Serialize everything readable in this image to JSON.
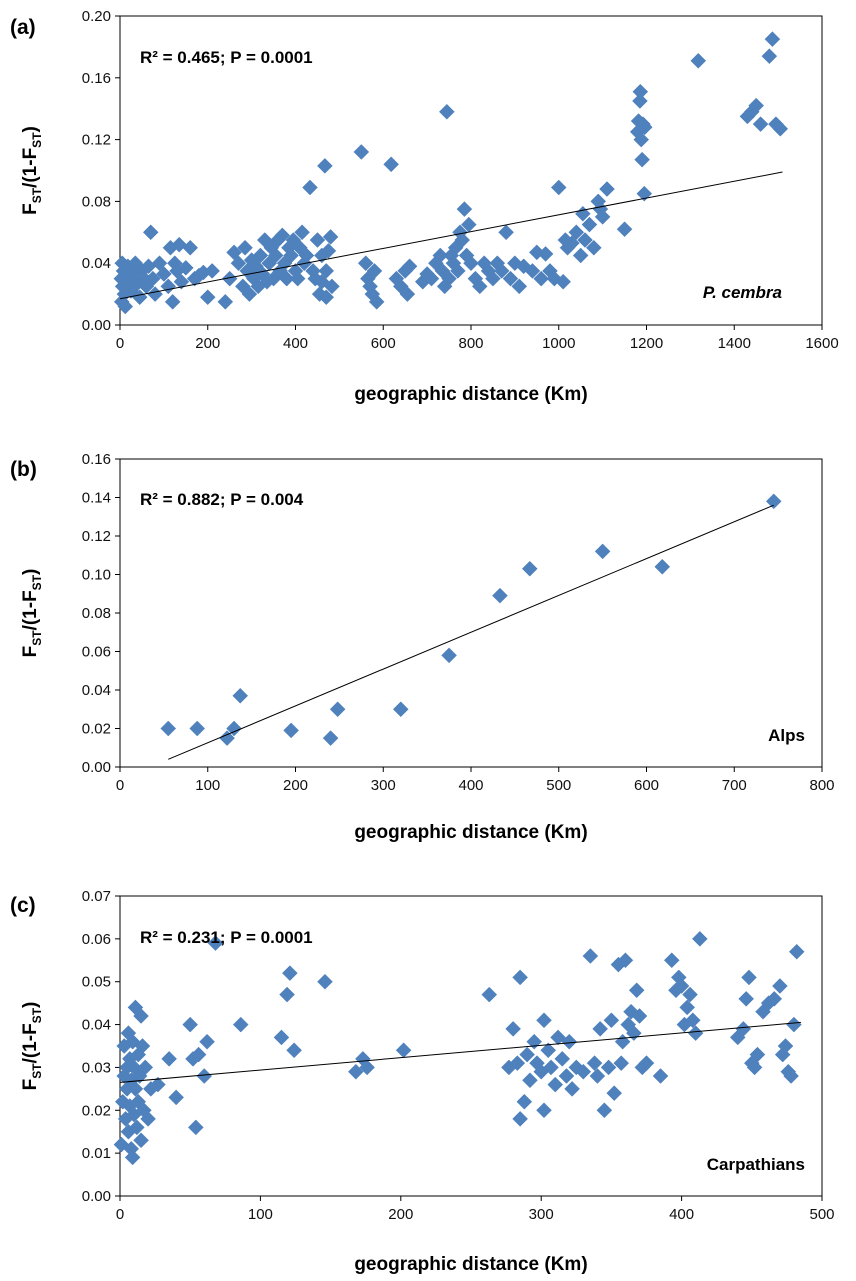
{
  "chart_data": [
    {
      "type": "scatter",
      "panel_label": "(a)",
      "stat_text": "R² = 0.465; P = 0.0001",
      "region_label": "P. cembra",
      "region_italic": true,
      "xlabel": "geographic distance (Km)",
      "ylabel_main": "F",
      "ylabel_sub": "ST",
      "ylabel_mid": "/(1-F",
      "ylabel_end": ")",
      "xlim": [
        0,
        1600
      ],
      "ylim": [
        0,
        0.2
      ],
      "xticks": [
        "0",
        "200",
        "400",
        "600",
        "800",
        "1000",
        "1200",
        "1400",
        "1600"
      ],
      "yticks": [
        "0.00",
        "0.04",
        "0.08",
        "0.12",
        "0.16",
        "0.20"
      ],
      "point_color": "#4f81bd",
      "trendline": {
        "x": [
          0,
          1510
        ],
        "y": [
          0.017,
          0.099
        ]
      },
      "points": [
        [
          5,
          0.04
        ],
        [
          8,
          0.035
        ],
        [
          3,
          0.03
        ],
        [
          6,
          0.025
        ],
        [
          10,
          0.02
        ],
        [
          4,
          0.015
        ],
        [
          12,
          0.012
        ],
        [
          15,
          0.03
        ],
        [
          18,
          0.038
        ],
        [
          20,
          0.028
        ],
        [
          25,
          0.022
        ],
        [
          30,
          0.033
        ],
        [
          35,
          0.04
        ],
        [
          40,
          0.027
        ],
        [
          45,
          0.018
        ],
        [
          50,
          0.035
        ],
        [
          55,
          0.03
        ],
        [
          60,
          0.025
        ],
        [
          70,
          0.06
        ],
        [
          65,
          0.038
        ],
        [
          75,
          0.03
        ],
        [
          80,
          0.02
        ],
        [
          90,
          0.04
        ],
        [
          100,
          0.033
        ],
        [
          110,
          0.025
        ],
        [
          115,
          0.05
        ],
        [
          120,
          0.015
        ],
        [
          125,
          0.04
        ],
        [
          130,
          0.035
        ],
        [
          135,
          0.052
        ],
        [
          140,
          0.028
        ],
        [
          150,
          0.037
        ],
        [
          160,
          0.05
        ],
        [
          170,
          0.03
        ],
        [
          180,
          0.032
        ],
        [
          190,
          0.034
        ],
        [
          200,
          0.018
        ],
        [
          210,
          0.035
        ],
        [
          240,
          0.015
        ],
        [
          250,
          0.03
        ],
        [
          260,
          0.047
        ],
        [
          270,
          0.04
        ],
        [
          280,
          0.025
        ],
        [
          285,
          0.05
        ],
        [
          290,
          0.035
        ],
        [
          295,
          0.02
        ],
        [
          300,
          0.042
        ],
        [
          305,
          0.03
        ],
        [
          310,
          0.038
        ],
        [
          315,
          0.025
        ],
        [
          320,
          0.045
        ],
        [
          325,
          0.033
        ],
        [
          330,
          0.055
        ],
        [
          335,
          0.028
        ],
        [
          340,
          0.04
        ],
        [
          345,
          0.05
        ],
        [
          350,
          0.03
        ],
        [
          355,
          0.045
        ],
        [
          360,
          0.055
        ],
        [
          365,
          0.035
        ],
        [
          370,
          0.058
        ],
        [
          375,
          0.04
        ],
        [
          380,
          0.03
        ],
        [
          385,
          0.05
        ],
        [
          390,
          0.045
        ],
        [
          395,
          0.055
        ],
        [
          400,
          0.035
        ],
        [
          405,
          0.03
        ],
        [
          410,
          0.05
        ],
        [
          415,
          0.06
        ],
        [
          420,
          0.04
        ],
        [
          425,
          0.045
        ],
        [
          433,
          0.089
        ],
        [
          440,
          0.035
        ],
        [
          445,
          0.03
        ],
        [
          450,
          0.055
        ],
        [
          455,
          0.02
        ],
        [
          460,
          0.045
        ],
        [
          467,
          0.103
        ],
        [
          470,
          0.035
        ],
        [
          475,
          0.048
        ],
        [
          480,
          0.057
        ],
        [
          483,
          0.025
        ],
        [
          470,
          0.018
        ],
        [
          460,
          0.028
        ],
        [
          550,
          0.112
        ],
        [
          560,
          0.04
        ],
        [
          565,
          0.03
        ],
        [
          570,
          0.025
        ],
        [
          575,
          0.02
        ],
        [
          580,
          0.035
        ],
        [
          585,
          0.015
        ],
        [
          618,
          0.104
        ],
        [
          630,
          0.03
        ],
        [
          640,
          0.025
        ],
        [
          650,
          0.035
        ],
        [
          655,
          0.02
        ],
        [
          660,
          0.038
        ],
        [
          690,
          0.028
        ],
        [
          700,
          0.033
        ],
        [
          710,
          0.03
        ],
        [
          720,
          0.04
        ],
        [
          730,
          0.045
        ],
        [
          735,
          0.035
        ],
        [
          740,
          0.025
        ],
        [
          745,
          0.138
        ],
        [
          750,
          0.03
        ],
        [
          755,
          0.045
        ],
        [
          760,
          0.04
        ],
        [
          765,
          0.05
        ],
        [
          770,
          0.035
        ],
        [
          775,
          0.06
        ],
        [
          780,
          0.055
        ],
        [
          785,
          0.075
        ],
        [
          790,
          0.045
        ],
        [
          795,
          0.065
        ],
        [
          800,
          0.04
        ],
        [
          810,
          0.03
        ],
        [
          820,
          0.025
        ],
        [
          830,
          0.04
        ],
        [
          840,
          0.035
        ],
        [
          850,
          0.03
        ],
        [
          860,
          0.04
        ],
        [
          870,
          0.035
        ],
        [
          880,
          0.06
        ],
        [
          890,
          0.03
        ],
        [
          900,
          0.04
        ],
        [
          910,
          0.025
        ],
        [
          920,
          0.038
        ],
        [
          940,
          0.035
        ],
        [
          950,
          0.047
        ],
        [
          960,
          0.03
        ],
        [
          970,
          0.046
        ],
        [
          980,
          0.035
        ],
        [
          990,
          0.03
        ],
        [
          1000,
          0.089
        ],
        [
          1010,
          0.028
        ],
        [
          1015,
          0.055
        ],
        [
          1020,
          0.05
        ],
        [
          1030,
          0.053
        ],
        [
          1040,
          0.06
        ],
        [
          1050,
          0.045
        ],
        [
          1055,
          0.072
        ],
        [
          1060,
          0.055
        ],
        [
          1070,
          0.065
        ],
        [
          1080,
          0.05
        ],
        [
          1090,
          0.08
        ],
        [
          1095,
          0.075
        ],
        [
          1100,
          0.07
        ],
        [
          1110,
          0.088
        ],
        [
          1150,
          0.062
        ],
        [
          1180,
          0.125
        ],
        [
          1182,
          0.132
        ],
        [
          1185,
          0.145
        ],
        [
          1186,
          0.151
        ],
        [
          1188,
          0.12
        ],
        [
          1190,
          0.107
        ],
        [
          1192,
          0.13
        ],
        [
          1195,
          0.085
        ],
        [
          1196,
          0.128
        ],
        [
          1318,
          0.171
        ],
        [
          1430,
          0.135
        ],
        [
          1440,
          0.138
        ],
        [
          1450,
          0.142
        ],
        [
          1460,
          0.13
        ],
        [
          1480,
          0.174
        ],
        [
          1487,
          0.185
        ],
        [
          1495,
          0.13
        ],
        [
          1505,
          0.127
        ]
      ]
    },
    {
      "type": "scatter",
      "panel_label": "(b)",
      "stat_text": "R² = 0.882; P = 0.004",
      "region_label": "Alps",
      "region_italic": false,
      "xlabel": "geographic distance (Km)",
      "ylabel_main": "F",
      "ylabel_sub": "ST",
      "ylabel_mid": "/(1-F",
      "ylabel_end": ")",
      "xlim": [
        0,
        800
      ],
      "ylim": [
        0,
        0.16
      ],
      "xticks": [
        "0",
        "100",
        "200",
        "300",
        "400",
        "500",
        "600",
        "700",
        "800"
      ],
      "yticks": [
        "0.00",
        "0.02",
        "0.04",
        "0.06",
        "0.08",
        "0.10",
        "0.12",
        "0.14",
        "0.16"
      ],
      "point_color": "#4f81bd",
      "trendline": {
        "x": [
          55,
          745
        ],
        "y": [
          0.004,
          0.136
        ]
      },
      "points": [
        [
          55,
          0.02
        ],
        [
          88,
          0.02
        ],
        [
          122,
          0.015
        ],
        [
          130,
          0.02
        ],
        [
          137,
          0.037
        ],
        [
          195,
          0.019
        ],
        [
          240,
          0.015
        ],
        [
          248,
          0.03
        ],
        [
          320,
          0.03
        ],
        [
          375,
          0.058
        ],
        [
          433,
          0.089
        ],
        [
          467,
          0.103
        ],
        [
          550,
          0.112
        ],
        [
          618,
          0.104
        ],
        [
          745,
          0.138
        ]
      ]
    },
    {
      "type": "scatter",
      "panel_label": "(c)",
      "stat_text": "R² = 0.231; P = 0.0001",
      "region_label": "Carpathians",
      "region_italic": false,
      "xlabel": "geographic distance (Km)",
      "ylabel_main": "F",
      "ylabel_sub": "ST",
      "ylabel_mid": "/(1-F",
      "ylabel_end": ")",
      "xlim": [
        0,
        500
      ],
      "ylim": [
        0,
        0.07
      ],
      "xticks": [
        "0",
        "100",
        "200",
        "300",
        "400",
        "500"
      ],
      "yticks": [
        "0.00",
        "0.01",
        "0.02",
        "0.03",
        "0.04",
        "0.05",
        "0.06",
        "0.07"
      ],
      "point_color": "#4f81bd",
      "trendline": {
        "x": [
          0,
          485
        ],
        "y": [
          0.0265,
          0.0405
        ]
      },
      "points": [
        [
          1,
          0.012
        ],
        [
          2,
          0.022
        ],
        [
          3,
          0.028
        ],
        [
          3,
          0.035
        ],
        [
          4,
          0.018
        ],
        [
          5,
          0.03
        ],
        [
          5,
          0.025
        ],
        [
          6,
          0.038
        ],
        [
          6,
          0.015
        ],
        [
          7,
          0.032
        ],
        [
          7,
          0.021
        ],
        [
          8,
          0.027
        ],
        [
          8,
          0.011
        ],
        [
          9,
          0.009
        ],
        [
          9,
          0.036
        ],
        [
          10,
          0.03
        ],
        [
          10,
          0.019
        ],
        [
          11,
          0.044
        ],
        [
          11,
          0.025
        ],
        [
          12,
          0.016
        ],
        [
          13,
          0.033
        ],
        [
          13,
          0.022
        ],
        [
          14,
          0.028
        ],
        [
          15,
          0.042
        ],
        [
          15,
          0.013
        ],
        [
          16,
          0.035
        ],
        [
          17,
          0.02
        ],
        [
          18,
          0.03
        ],
        [
          20,
          0.018
        ],
        [
          22,
          0.025
        ],
        [
          27,
          0.026
        ],
        [
          35,
          0.032
        ],
        [
          40,
          0.023
        ],
        [
          50,
          0.04
        ],
        [
          52,
          0.032
        ],
        [
          54,
          0.016
        ],
        [
          56,
          0.033
        ],
        [
          60,
          0.028
        ],
        [
          62,
          0.036
        ],
        [
          68,
          0.059
        ],
        [
          86,
          0.04
        ],
        [
          115,
          0.037
        ],
        [
          119,
          0.047
        ],
        [
          121,
          0.052
        ],
        [
          124,
          0.034
        ],
        [
          146,
          0.05
        ],
        [
          168,
          0.029
        ],
        [
          173,
          0.032
        ],
        [
          176,
          0.03
        ],
        [
          202,
          0.034
        ],
        [
          263,
          0.047
        ],
        [
          277,
          0.03
        ],
        [
          280,
          0.039
        ],
        [
          283,
          0.031
        ],
        [
          285,
          0.051
        ],
        [
          285,
          0.018
        ],
        [
          288,
          0.022
        ],
        [
          290,
          0.033
        ],
        [
          292,
          0.027
        ],
        [
          295,
          0.036
        ],
        [
          297,
          0.031
        ],
        [
          300,
          0.029
        ],
        [
          302,
          0.041
        ],
        [
          302,
          0.02
        ],
        [
          305,
          0.034
        ],
        [
          307,
          0.03
        ],
        [
          310,
          0.026
        ],
        [
          312,
          0.037
        ],
        [
          315,
          0.032
        ],
        [
          318,
          0.028
        ],
        [
          320,
          0.036
        ],
        [
          322,
          0.025
        ],
        [
          325,
          0.03
        ],
        [
          330,
          0.029
        ],
        [
          335,
          0.056
        ],
        [
          338,
          0.031
        ],
        [
          340,
          0.028
        ],
        [
          342,
          0.039
        ],
        [
          345,
          0.02
        ],
        [
          348,
          0.03
        ],
        [
          350,
          0.041
        ],
        [
          352,
          0.024
        ],
        [
          355,
          0.054
        ],
        [
          357,
          0.031
        ],
        [
          358,
          0.036
        ],
        [
          360,
          0.055
        ],
        [
          362,
          0.04
        ],
        [
          364,
          0.043
        ],
        [
          366,
          0.038
        ],
        [
          368,
          0.048
        ],
        [
          370,
          0.042
        ],
        [
          372,
          0.03
        ],
        [
          375,
          0.031
        ],
        [
          385,
          0.028
        ],
        [
          393,
          0.055
        ],
        [
          396,
          0.048
        ],
        [
          398,
          0.051
        ],
        [
          400,
          0.049
        ],
        [
          402,
          0.04
        ],
        [
          404,
          0.044
        ],
        [
          406,
          0.047
        ],
        [
          408,
          0.041
        ],
        [
          410,
          0.038
        ],
        [
          413,
          0.06
        ],
        [
          440,
          0.037
        ],
        [
          444,
          0.039
        ],
        [
          446,
          0.046
        ],
        [
          448,
          0.051
        ],
        [
          450,
          0.031
        ],
        [
          452,
          0.03
        ],
        [
          454,
          0.033
        ],
        [
          458,
          0.043
        ],
        [
          462,
          0.045
        ],
        [
          466,
          0.046
        ],
        [
          470,
          0.049
        ],
        [
          472,
          0.033
        ],
        [
          474,
          0.035
        ],
        [
          476,
          0.029
        ],
        [
          478,
          0.028
        ],
        [
          480,
          0.04
        ],
        [
          482,
          0.057
        ]
      ]
    }
  ]
}
